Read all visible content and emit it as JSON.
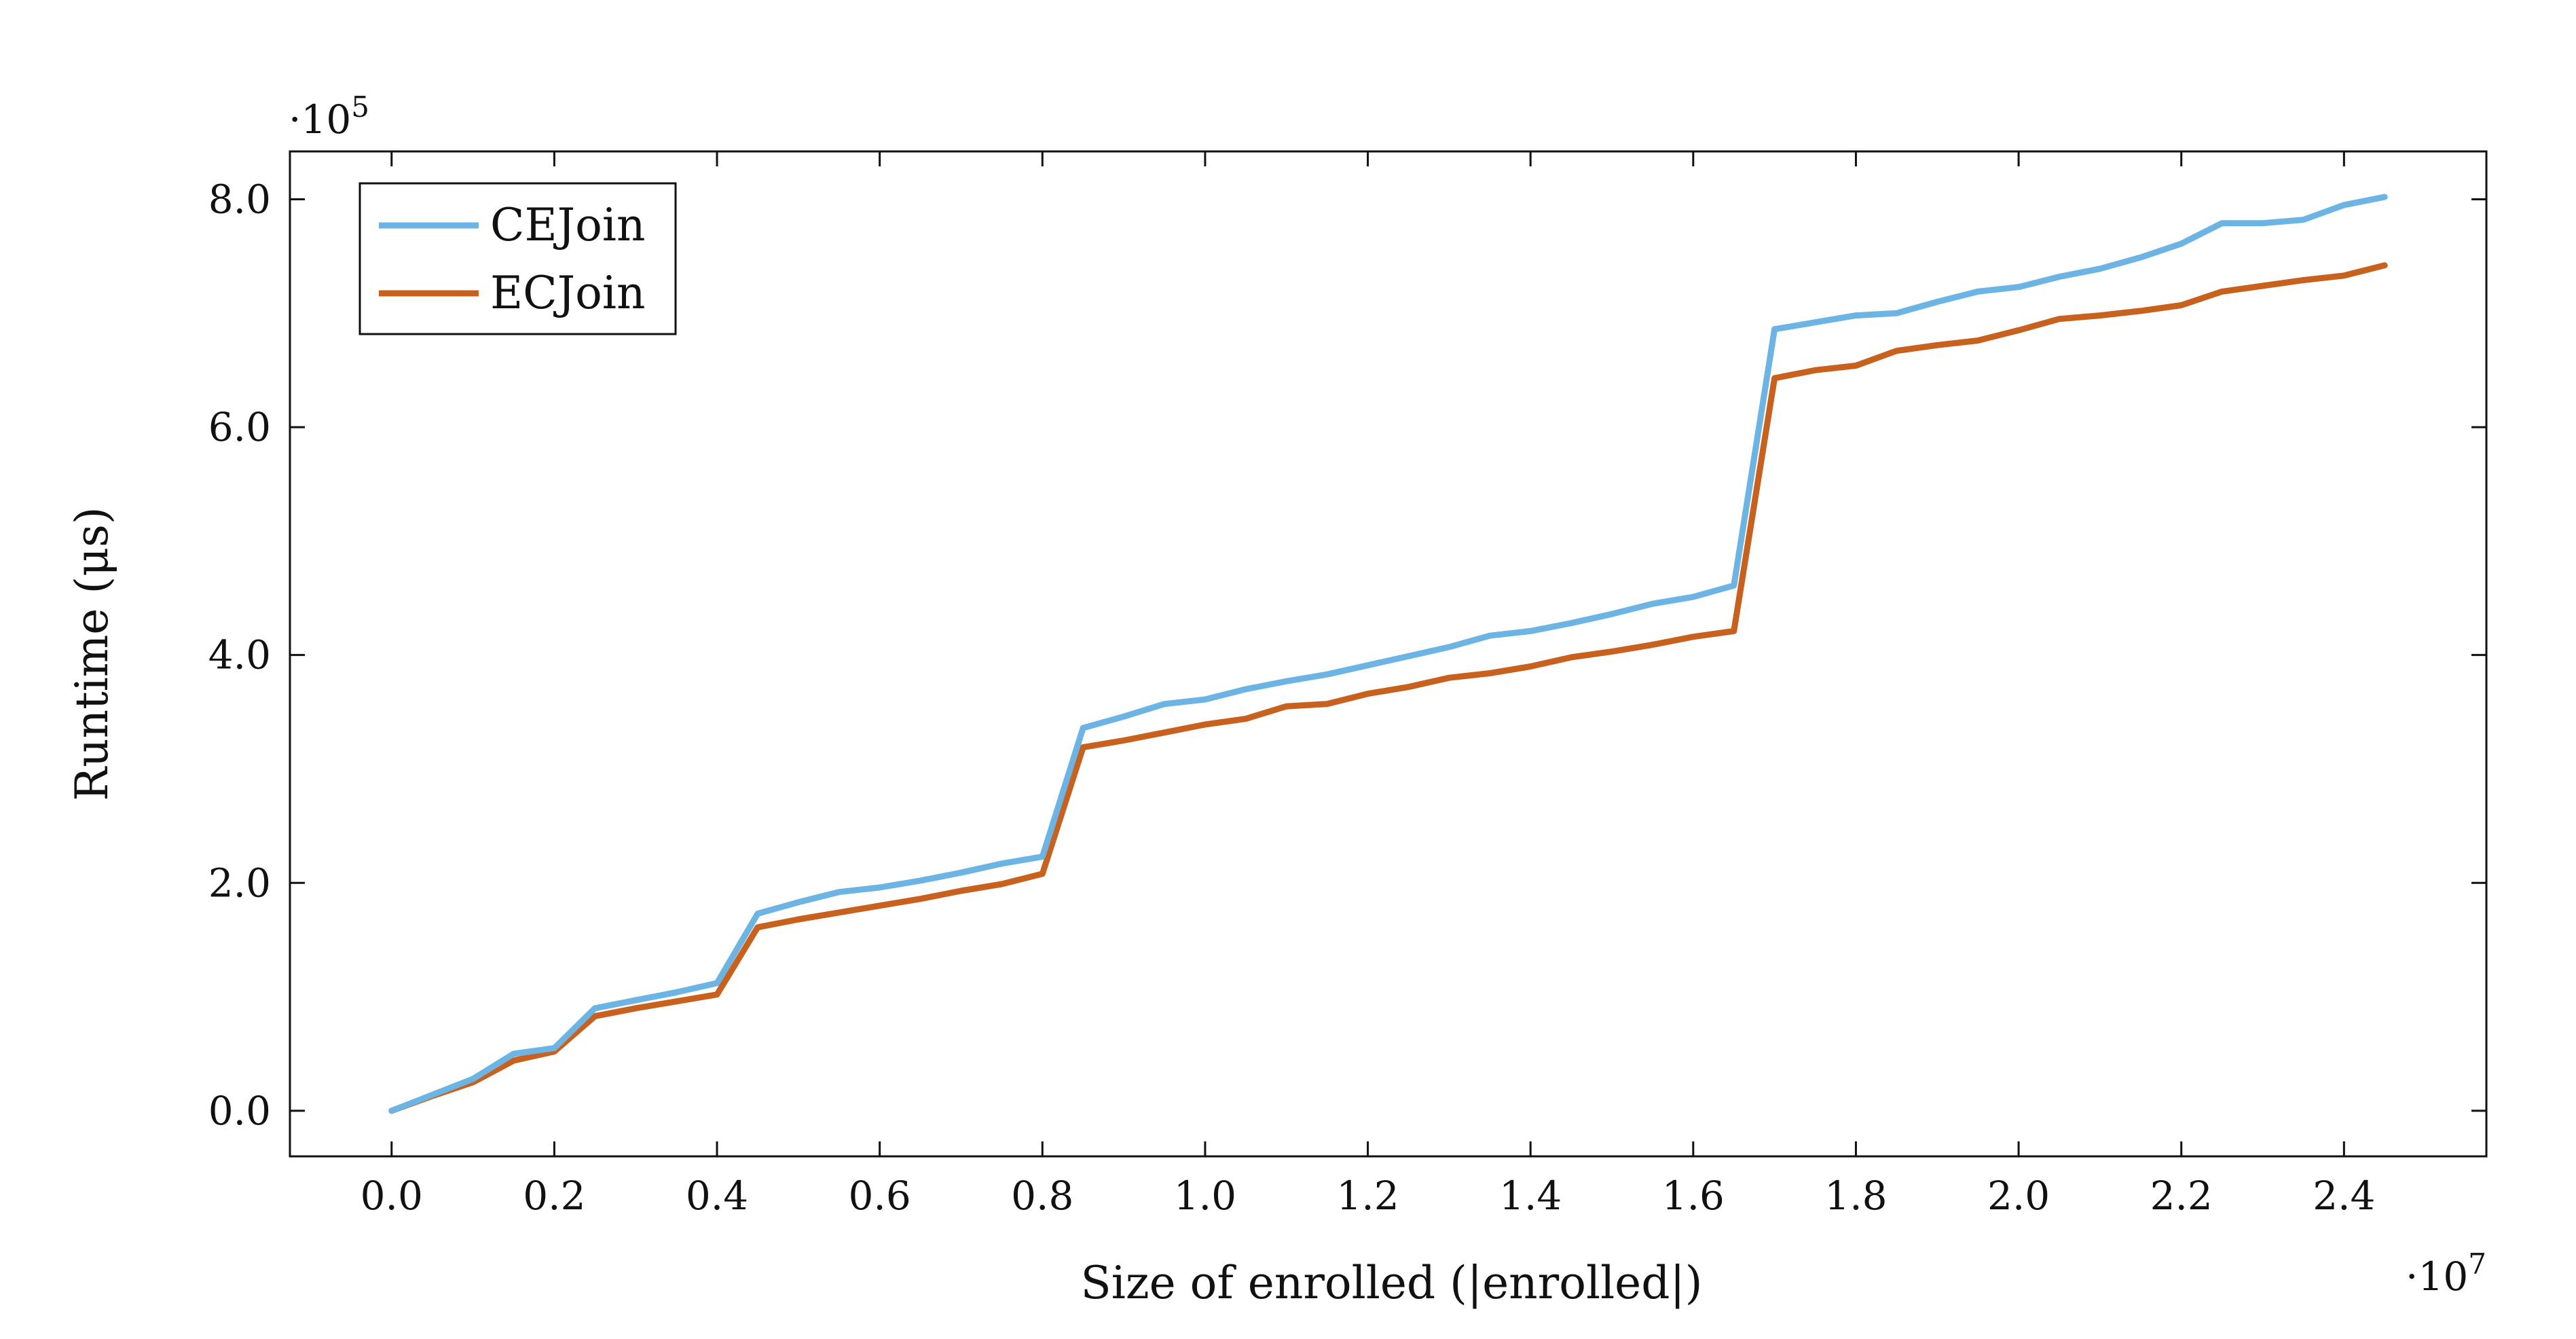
{
  "chart_data": {
    "type": "line",
    "xlabel": "Size of enrolled (|enrolled|)",
    "ylabel": "Runtime (μs)",
    "x_multiplier": "·10^7",
    "y_multiplier": "·10^5",
    "xlim": [
      -0.125,
      2.575
    ],
    "ylim": [
      -0.4,
      8.42
    ],
    "x_ticks": [
      "0.0",
      "0.2",
      "0.4",
      "0.6",
      "0.8",
      "1.0",
      "1.2",
      "1.4",
      "1.6",
      "1.8",
      "2.0",
      "2.2",
      "2.4"
    ],
    "y_ticks": [
      "0.0",
      "2.0",
      "4.0",
      "6.0",
      "8.0"
    ],
    "grid": false,
    "legend_position": "top-left",
    "x": [
      0,
      0.05,
      0.1,
      0.15,
      0.2,
      0.25,
      0.3,
      0.35,
      0.4,
      0.45,
      0.5,
      0.55,
      0.6,
      0.65,
      0.7,
      0.75,
      0.8,
      0.85,
      0.9,
      0.95,
      1.0,
      1.05,
      1.1,
      1.15,
      1.2,
      1.25,
      1.3,
      1.35,
      1.4,
      1.45,
      1.5,
      1.55,
      1.6,
      1.65,
      1.7,
      1.75,
      1.8,
      1.85,
      1.9,
      1.95,
      2.0,
      2.05,
      2.1,
      2.15,
      2.2,
      2.25,
      2.3,
      2.35,
      2.4,
      2.45
    ],
    "series": [
      {
        "name": "CEJoin",
        "color": "#6cb4e4",
        "values": [
          0.0,
          0.14,
          0.28,
          0.5,
          0.55,
          0.9,
          0.97,
          1.04,
          1.12,
          1.73,
          1.83,
          1.92,
          1.96,
          2.02,
          2.09,
          2.17,
          2.23,
          3.36,
          3.46,
          3.57,
          3.61,
          3.7,
          3.77,
          3.83,
          3.91,
          3.99,
          4.07,
          4.17,
          4.21,
          4.28,
          4.36,
          4.45,
          4.51,
          4.61,
          6.86,
          6.92,
          6.98,
          7.0,
          7.1,
          7.19,
          7.23,
          7.32,
          7.39,
          7.49,
          7.61,
          7.79,
          7.79,
          7.82,
          7.95,
          8.02
        ]
      },
      {
        "name": "ECJoin",
        "color": "#c8611d",
        "values": [
          0.0,
          0.13,
          0.25,
          0.44,
          0.52,
          0.83,
          0.9,
          0.96,
          1.02,
          1.61,
          1.68,
          1.74,
          1.8,
          1.86,
          1.93,
          1.99,
          2.08,
          3.19,
          3.25,
          3.32,
          3.39,
          3.44,
          3.55,
          3.57,
          3.66,
          3.72,
          3.8,
          3.84,
          3.9,
          3.98,
          4.03,
          4.09,
          4.16,
          4.21,
          6.43,
          6.5,
          6.54,
          6.67,
          6.72,
          6.76,
          6.85,
          6.95,
          6.98,
          7.02,
          7.07,
          7.19,
          7.24,
          7.29,
          7.33,
          7.42
        ]
      }
    ]
  }
}
